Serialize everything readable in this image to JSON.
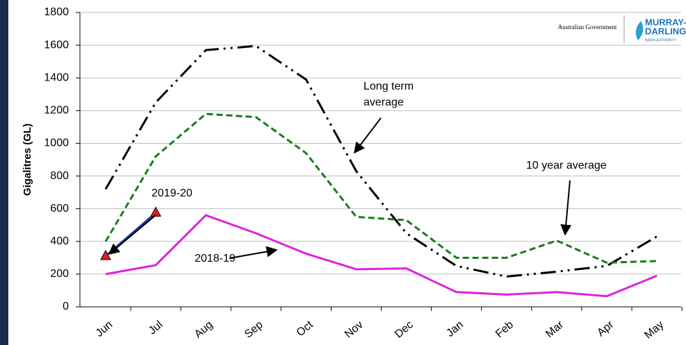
{
  "chart_data": {
    "type": "line",
    "y_label": "Gigalitres (GL)",
    "categories": [
      "Jun",
      "Jul",
      "Aug",
      "Sep",
      "Oct",
      "Nov",
      "Dec",
      "Jan",
      "Feb",
      "Mar",
      "Apr",
      "May"
    ],
    "series": [
      {
        "name": "Long term average",
        "color": "#000000",
        "values": [
          720,
          1250,
          1570,
          1595,
          1390,
          830,
          450,
          250,
          185,
          215,
          250,
          430
        ]
      },
      {
        "name": "10 year average",
        "color": "#1a7a1a",
        "values": [
          400,
          920,
          1180,
          1160,
          940,
          550,
          530,
          300,
          300,
          405,
          270,
          280
        ]
      },
      {
        "name": "2018-19",
        "color": "#e020e0",
        "values": [
          200,
          255,
          560,
          450,
          325,
          230,
          235,
          90,
          75,
          90,
          65,
          190
        ]
      },
      {
        "name": "2019-20",
        "color": "#1f3ea8",
        "values": [
          310,
          575,
          null,
          null,
          null,
          null,
          null,
          null,
          null,
          null,
          null,
          null
        ]
      }
    ],
    "ylim": [
      0,
      1800
    ],
    "yticks": [
      0,
      200,
      400,
      600,
      800,
      1000,
      1200,
      1400,
      1600,
      1800
    ],
    "grid": true,
    "logo_texts": [
      "Australian Government",
      "MURRAY-",
      "DARLING",
      "BASIN AUTHORITY"
    ]
  }
}
